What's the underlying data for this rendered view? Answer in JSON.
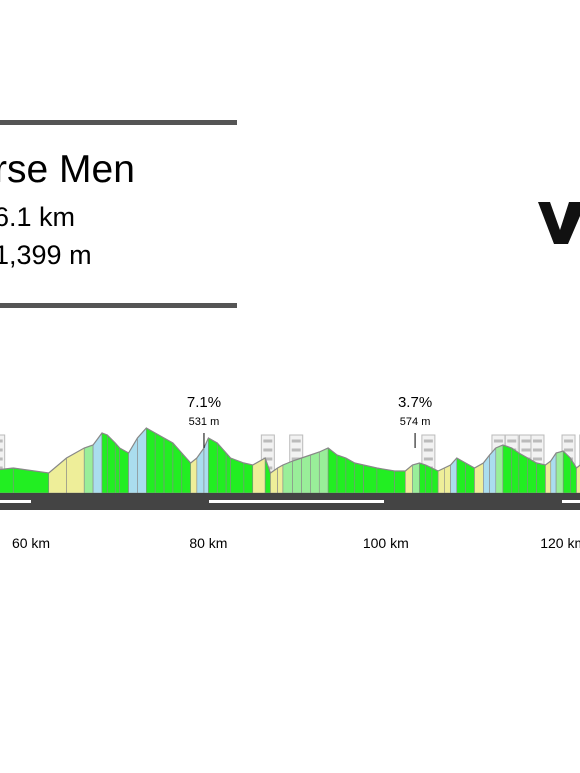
{
  "race": {
    "title": "rse Men",
    "distance": "6.1 km",
    "elevation": "1,399 m"
  },
  "icons": {
    "logo": "logo-v-mark"
  },
  "colors": {
    "rule": "#555555",
    "road": "#444444",
    "road_marker": "#ffffff",
    "gradient_flat": "#22ee22",
    "gradient_low": "#99ee99",
    "gradient_mid": "#eeee99",
    "gradient_steep": "#aaddee",
    "outline": "#888888",
    "cobble": "#bbbbbb"
  },
  "chart_data": {
    "type": "area",
    "title": "",
    "xlabel": "",
    "ylabel": "",
    "x_unit": "km",
    "xlim": [
      50,
      125
    ],
    "ticks": [
      {
        "value": 60,
        "label": "60 km"
      },
      {
        "value": 80,
        "label": "80 km"
      },
      {
        "value": 100,
        "label": "100 km"
      },
      {
        "value": 120,
        "label": "120 km"
      }
    ],
    "climbs": [
      {
        "km": 79.5,
        "grade": "7.1%",
        "altitude": "531 m"
      },
      {
        "km": 103.3,
        "grade": "3.7%",
        "altitude": "574 m"
      }
    ],
    "cobbled_sectors_km": [
      56.3,
      86.7,
      89.9,
      104.8,
      112.7,
      114.2,
      115.8,
      117.1,
      120.6,
      122.6
    ],
    "profile": {
      "x": [
        50,
        55,
        58,
        62,
        64,
        66,
        67,
        68,
        68.6,
        69.5,
        70,
        71,
        72,
        73,
        74,
        75,
        76,
        77,
        78,
        78.7,
        79.5,
        80,
        81,
        82,
        82.5,
        84,
        85,
        86.4,
        87,
        87.8,
        88.4,
        89.5,
        90.5,
        91.5,
        92.5,
        93.5,
        94.5,
        95.5,
        96.5,
        97.5,
        99,
        101,
        102.2,
        103,
        103.8,
        104.5,
        105.2,
        105.9,
        106.6,
        107.3,
        108,
        109,
        110,
        111,
        111.7,
        112.4,
        113.2,
        114.2,
        115,
        116,
        117,
        118,
        118.6,
        119.2,
        120,
        120.8,
        121.5,
        122.2,
        122.9,
        123.5,
        124,
        125
      ],
      "elevation": [
        20,
        22,
        25,
        20,
        35,
        45,
        48,
        60,
        58,
        50,
        45,
        40,
        55,
        65,
        60,
        55,
        50,
        40,
        30,
        35,
        45,
        55,
        50,
        40,
        35,
        30,
        28,
        35,
        20,
        25,
        28,
        32,
        35,
        38,
        41,
        45,
        38,
        35,
        30,
        28,
        25,
        22,
        22,
        28,
        30,
        28,
        25,
        22,
        25,
        28,
        35,
        30,
        25,
        30,
        38,
        45,
        48,
        45,
        40,
        35,
        30,
        28,
        32,
        40,
        42,
        35,
        25,
        30,
        20,
        25,
        30,
        35
      ]
    }
  }
}
